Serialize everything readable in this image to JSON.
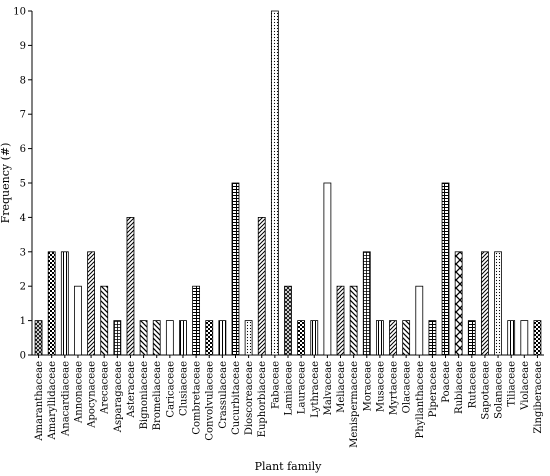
{
  "chart_data": {
    "type": "bar",
    "xlabel": "Plant family",
    "ylabel": "Frequency (#)",
    "ylim": [
      0,
      10
    ],
    "yticks": [
      0,
      1,
      2,
      3,
      4,
      5,
      6,
      7,
      8,
      9,
      10
    ],
    "grid": false,
    "legend": "none",
    "categories": [
      "Amaranthaceae",
      "Amaryllidaceae",
      "Anacardiaceae",
      "Annonaceae",
      "Apocynaceae",
      "Arecaceae",
      "Asparagaceae",
      "Asteraceae",
      "Bignoniaceae",
      "Bromeliaceae",
      "Caricaceae",
      "Clusiaceae",
      "Combretaceae",
      "Convolvulaceae",
      "Crassulaceae",
      "Cucurbitaceae",
      "Dioscoreaceae",
      "Euphorbiaceae",
      "Fabaceae",
      "Lamiaceae",
      "Lauraceae",
      "Lythraceae",
      "Malvaceae",
      "Meliaceae",
      "Menispermaceae",
      "Moraceae",
      "Musaceae",
      "Myrtaceae",
      "Olacaceae",
      "Phyllanthaceae",
      "Piperaceae",
      "Poaceae",
      "Rubiaceae",
      "Rutaceae",
      "Sapotaceae",
      "Solanaceae",
      "Tiliaceae",
      "Violaceae",
      "Zingiberaceae"
    ],
    "values": [
      1,
      3,
      3,
      2,
      3,
      2,
      1,
      4,
      1,
      1,
      1,
      1,
      2,
      1,
      1,
      5,
      1,
      4,
      10,
      2,
      1,
      1,
      5,
      2,
      2,
      3,
      1,
      1,
      1,
      2,
      1,
      5,
      3,
      1,
      3,
      3,
      1,
      1,
      1
    ],
    "patterns": [
      "p-cross",
      "p-check",
      "p-vert",
      "p-blank",
      "p-diag-l",
      "p-diag-r",
      "p-grid",
      "p-diag-l",
      "p-diag-r",
      "p-diag-r",
      "p-blank",
      "p-vert",
      "p-hgrid",
      "p-check",
      "p-vert",
      "p-hgrid",
      "p-dots",
      "p-diag-l",
      "p-dots",
      "p-cross",
      "p-check",
      "p-vert",
      "p-blank",
      "p-diag-l",
      "p-diag-r",
      "p-grid",
      "p-vert",
      "p-diag-l",
      "p-diag-r",
      "p-blank",
      "p-hgrid",
      "p-hgrid",
      "p-bigx",
      "p-hgrid",
      "p-diag-l",
      "p-dots",
      "p-vert",
      "p-blank",
      "p-check"
    ]
  }
}
